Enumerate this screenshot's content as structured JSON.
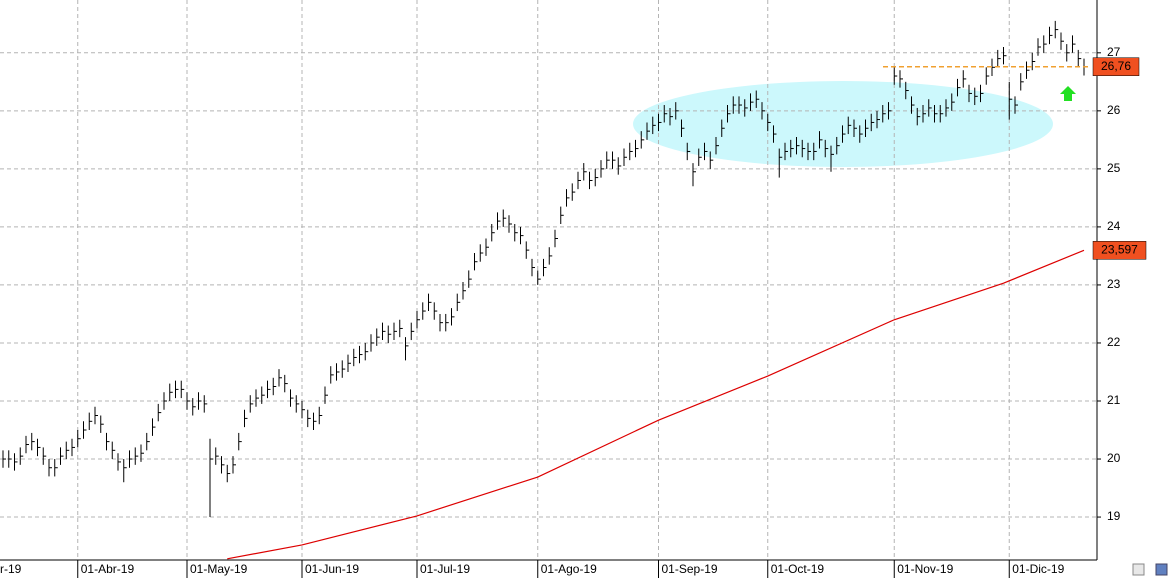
{
  "chart_data": {
    "type": "ohlc",
    "color": "#000000",
    "grid": true,
    "ylim": [
      18.26,
      27.91
    ],
    "yticks": [
      19,
      20,
      21,
      22,
      23,
      24,
      25,
      26,
      27
    ],
    "categories": [
      "r-19",
      null,
      null,
      null,
      null,
      null,
      null,
      null,
      null,
      null,
      null,
      null,
      null,
      "01-Abr-19",
      null,
      null,
      null,
      null,
      null,
      null,
      null,
      null,
      null,
      null,
      null,
      null,
      null,
      null,
      null,
      null,
      null,
      null,
      "01-May-19",
      null,
      null,
      null,
      null,
      null,
      null,
      null,
      null,
      null,
      null,
      null,
      null,
      null,
      null,
      null,
      null,
      null,
      null,
      null,
      "01-Jun-19",
      null,
      null,
      null,
      null,
      null,
      null,
      null,
      null,
      null,
      null,
      null,
      null,
      null,
      null,
      null,
      null,
      null,
      null,
      null,
      "01-Jul-19",
      null,
      null,
      null,
      null,
      null,
      null,
      null,
      null,
      null,
      null,
      null,
      null,
      null,
      null,
      null,
      null,
      null,
      null,
      null,
      null,
      "01-Ago-19",
      null,
      null,
      null,
      null,
      null,
      null,
      null,
      null,
      null,
      null,
      null,
      null,
      null,
      null,
      null,
      null,
      null,
      null,
      null,
      null,
      "01-Sep-19",
      null,
      null,
      null,
      null,
      null,
      null,
      null,
      null,
      null,
      null,
      null,
      null,
      null,
      null,
      null,
      null,
      null,
      null,
      "01-Oct-19",
      null,
      null,
      null,
      null,
      null,
      null,
      null,
      null,
      null,
      null,
      null,
      null,
      null,
      null,
      null,
      null,
      null,
      null,
      null,
      null,
      null,
      "01-Nov-19",
      null,
      null,
      null,
      null,
      null,
      null,
      null,
      null,
      null,
      null,
      null,
      null,
      null,
      null,
      null,
      null,
      null,
      null,
      null,
      "01-Dic-19",
      null,
      null,
      null,
      null,
      null,
      null,
      null,
      null,
      null,
      null,
      null,
      null,
      null
    ],
    "high": [
      20.15,
      20.15,
      20.1,
      20.2,
      20.4,
      20.45,
      20.35,
      20.2,
      20.0,
      20.0,
      20.2,
      20.3,
      20.35,
      20.5,
      20.65,
      20.8,
      20.9,
      20.75,
      20.45,
      20.3,
      20.1,
      20.0,
      20.15,
      20.2,
      20.25,
      20.45,
      20.7,
      20.95,
      21.15,
      21.3,
      21.35,
      21.35,
      21.15,
      21.05,
      21.15,
      21.1,
      20.35,
      20.2,
      20.05,
      19.9,
      20.05,
      20.45,
      20.85,
      21.1,
      21.2,
      21.25,
      21.35,
      21.4,
      21.55,
      21.45,
      21.2,
      21.1,
      21.0,
      20.85,
      20.8,
      20.9,
      21.25,
      21.6,
      21.65,
      21.7,
      21.8,
      21.9,
      21.95,
      22.0,
      22.15,
      22.25,
      22.35,
      22.3,
      22.35,
      22.4,
      22.1,
      22.35,
      22.55,
      22.7,
      22.85,
      22.7,
      22.5,
      22.5,
      22.6,
      22.85,
      23.05,
      23.25,
      23.55,
      23.7,
      23.8,
      24.05,
      24.25,
      24.3,
      24.2,
      24.05,
      24.0,
      23.75,
      23.45,
      23.25,
      23.45,
      23.65,
      23.95,
      24.35,
      24.65,
      24.75,
      24.95,
      25.1,
      24.95,
      25.0,
      25.15,
      25.3,
      25.3,
      25.2,
      25.35,
      25.45,
      25.5,
      25.65,
      25.8,
      25.9,
      25.95,
      26.1,
      26.05,
      26.15,
      25.85,
      25.45,
      25.1,
      25.35,
      25.45,
      25.3,
      25.55,
      25.85,
      26.1,
      26.25,
      26.25,
      26.2,
      26.3,
      26.35,
      26.15,
      25.95,
      25.75,
      25.35,
      25.45,
      25.5,
      25.55,
      25.5,
      25.45,
      25.45,
      25.65,
      25.5,
      25.4,
      25.55,
      25.75,
      25.9,
      25.85,
      25.75,
      25.85,
      25.95,
      26.0,
      26.1,
      26.15,
      26.75,
      26.7,
      26.5,
      26.25,
      26.05,
      26.1,
      26.2,
      26.1,
      26.1,
      26.2,
      26.3,
      26.55,
      26.7,
      26.45,
      26.4,
      26.45,
      26.75,
      26.9,
      27.05,
      27.1,
      26.5,
      26.25,
      26.65,
      26.85,
      27.0,
      27.25,
      27.3,
      27.45,
      27.55,
      27.35,
      27.15,
      27.3,
      27.05,
      26.9
    ],
    "low": [
      19.85,
      19.85,
      19.8,
      19.9,
      20.1,
      20.15,
      20.05,
      19.9,
      19.7,
      19.7,
      19.9,
      20.0,
      20.05,
      20.2,
      20.35,
      20.5,
      20.6,
      20.45,
      20.15,
      20.0,
      19.8,
      19.6,
      19.85,
      19.9,
      19.95,
      20.15,
      20.4,
      20.65,
      20.85,
      21.0,
      21.05,
      21.05,
      20.85,
      20.75,
      20.85,
      20.8,
      19.0,
      19.9,
      19.75,
      19.6,
      19.75,
      20.15,
      20.55,
      20.8,
      20.9,
      20.95,
      21.05,
      21.1,
      21.25,
      21.15,
      20.9,
      20.8,
      20.7,
      20.55,
      20.5,
      20.6,
      20.95,
      21.3,
      21.35,
      21.4,
      21.5,
      21.6,
      21.65,
      21.7,
      21.85,
      21.95,
      22.05,
      22.0,
      22.05,
      22.1,
      21.7,
      22.05,
      22.25,
      22.4,
      22.55,
      22.4,
      22.2,
      22.2,
      22.3,
      22.55,
      22.75,
      22.95,
      23.25,
      23.4,
      23.5,
      23.75,
      23.95,
      24.0,
      23.9,
      23.75,
      23.7,
      23.45,
      23.15,
      23.0,
      23.15,
      23.35,
      23.65,
      24.05,
      24.35,
      24.45,
      24.65,
      24.8,
      24.65,
      24.7,
      24.85,
      25.0,
      25.0,
      24.9,
      25.05,
      25.15,
      25.2,
      25.35,
      25.5,
      25.6,
      25.65,
      25.8,
      25.75,
      25.85,
      25.55,
      25.15,
      24.7,
      25.05,
      25.15,
      25.0,
      25.25,
      25.55,
      25.8,
      25.95,
      25.95,
      25.9,
      26.0,
      26.05,
      25.85,
      25.65,
      25.45,
      24.85,
      25.15,
      25.2,
      25.25,
      25.2,
      25.15,
      25.15,
      25.35,
      25.2,
      24.95,
      25.25,
      25.45,
      25.6,
      25.55,
      25.45,
      25.55,
      25.65,
      25.7,
      25.8,
      25.85,
      26.45,
      26.4,
      26.2,
      25.95,
      25.75,
      25.8,
      25.9,
      25.8,
      25.8,
      25.9,
      26.0,
      26.25,
      26.4,
      26.15,
      26.1,
      26.15,
      26.45,
      26.6,
      26.75,
      26.8,
      25.85,
      25.95,
      26.35,
      26.55,
      26.7,
      26.95,
      27.0,
      27.15,
      27.25,
      27.05,
      26.85,
      27.0,
      26.75,
      26.61
    ],
    "close": [
      20.0,
      20.0,
      19.95,
      20.05,
      20.25,
      20.3,
      20.2,
      20.05,
      19.85,
      19.85,
      20.05,
      20.15,
      20.2,
      20.35,
      20.5,
      20.65,
      20.75,
      20.6,
      20.3,
      20.15,
      19.95,
      19.85,
      20.0,
      20.05,
      20.1,
      20.3,
      20.55,
      20.8,
      21.0,
      21.15,
      21.2,
      21.2,
      21.0,
      20.9,
      21.0,
      20.95,
      20.0,
      20.05,
      19.9,
      19.75,
      19.9,
      20.3,
      20.7,
      20.95,
      21.05,
      21.1,
      21.2,
      21.25,
      21.4,
      21.3,
      21.05,
      20.95,
      20.85,
      20.7,
      20.65,
      20.75,
      21.1,
      21.45,
      21.5,
      21.55,
      21.65,
      21.75,
      21.8,
      21.85,
      22.0,
      22.1,
      22.2,
      22.15,
      22.2,
      22.25,
      21.95,
      22.2,
      22.4,
      22.55,
      22.7,
      22.55,
      22.35,
      22.35,
      22.45,
      22.7,
      22.9,
      23.1,
      23.4,
      23.55,
      23.65,
      23.9,
      24.1,
      24.15,
      24.05,
      23.9,
      23.85,
      23.6,
      23.3,
      23.1,
      23.3,
      23.5,
      23.8,
      24.2,
      24.5,
      24.6,
      24.8,
      24.95,
      24.8,
      24.85,
      25.0,
      25.15,
      25.15,
      25.05,
      25.2,
      25.3,
      25.35,
      25.5,
      25.65,
      25.75,
      25.8,
      25.95,
      25.9,
      26.0,
      25.7,
      25.3,
      24.95,
      25.2,
      25.3,
      25.15,
      25.4,
      25.7,
      25.95,
      26.1,
      26.1,
      26.05,
      26.15,
      26.2,
      26.0,
      25.8,
      25.6,
      25.2,
      25.3,
      25.35,
      25.4,
      25.35,
      25.3,
      25.3,
      25.5,
      25.35,
      25.25,
      25.4,
      25.6,
      25.75,
      25.7,
      25.6,
      25.7,
      25.8,
      25.85,
      25.95,
      26.0,
      26.6,
      26.55,
      26.35,
      26.1,
      25.9,
      25.95,
      26.05,
      25.95,
      25.95,
      26.05,
      26.15,
      26.4,
      26.55,
      26.3,
      26.25,
      26.3,
      26.6,
      26.75,
      26.9,
      26.95,
      26.2,
      26.1,
      26.5,
      26.7,
      26.85,
      27.1,
      27.15,
      27.3,
      27.4,
      27.2,
      27.0,
      27.15,
      26.9,
      26.76
    ],
    "ma": {
      "color": "#dd0000",
      "x": [
        39,
        52,
        72,
        93,
        114,
        133,
        155,
        174,
        188
      ],
      "values": [
        18.28,
        18.52,
        19.02,
        19.69,
        20.67,
        21.43,
        22.4,
        23.03,
        23.597
      ]
    },
    "last_price": {
      "value": 26.76,
      "label": "26,76",
      "color": "#f05020",
      "line_color": "#f0a030"
    },
    "ma_last": {
      "value": 23.597,
      "label": "23,597",
      "color": "#f05020"
    }
  }
}
